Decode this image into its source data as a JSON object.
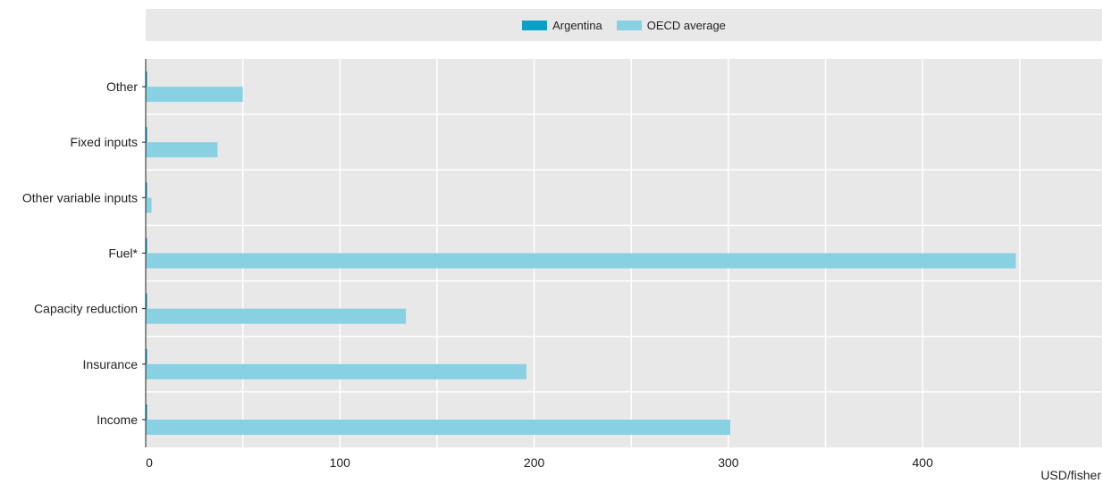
{
  "chart_data": {
    "type": "bar",
    "orientation": "horizontal",
    "categories": [
      "Other",
      "Fixed inputs",
      "Other variable inputs",
      "Fuel*",
      "Capacity reduction",
      "Insurance",
      "Income"
    ],
    "series": [
      {
        "name": "Argentina",
        "color": "#0a9fc4",
        "values": [
          0,
          0,
          0,
          0,
          0,
          0,
          0
        ]
      },
      {
        "name": "OECD average",
        "color": "#87d1e3",
        "values": [
          50,
          37,
          3,
          448,
          134,
          196,
          301
        ]
      }
    ],
    "x_ticks": [
      0,
      100,
      200,
      300,
      400
    ],
    "xlim": [
      0,
      494
    ],
    "unit": "USD/fisher",
    "grid": true,
    "legend_position": "top"
  }
}
